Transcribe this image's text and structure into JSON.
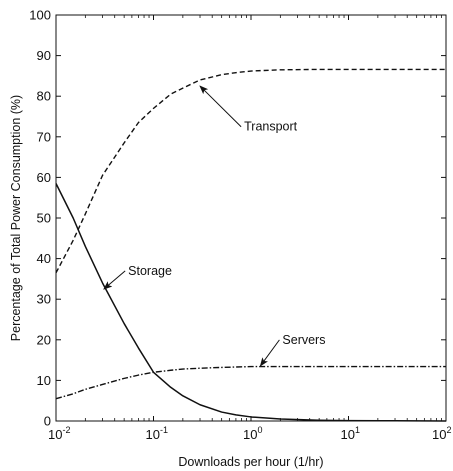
{
  "chart_data": {
    "type": "line",
    "title": "",
    "xlabel": "Downloads per hour (1/hr)",
    "ylabel": "Percentage of Total Power Consumption (%)",
    "xscale": "log",
    "xlim": [
      0.01,
      100
    ],
    "ylim": [
      0,
      100
    ],
    "grid": false,
    "legend": "none",
    "x_ticks": [
      {
        "base": "10",
        "exp": "-2",
        "value": 0.01
      },
      {
        "base": "10",
        "exp": "-1",
        "value": 0.1
      },
      {
        "base": "10",
        "exp": "0",
        "value": 1
      },
      {
        "base": "10",
        "exp": "1",
        "value": 10
      },
      {
        "base": "10",
        "exp": "2",
        "value": 100
      }
    ],
    "y_ticks": [
      "0",
      "10",
      "20",
      "30",
      "40",
      "50",
      "60",
      "70",
      "80",
      "90",
      "100"
    ],
    "series": [
      {
        "name": "Transport",
        "style": "dashed",
        "color": "#111111",
        "x": [
          0.01,
          0.015,
          0.02,
          0.03,
          0.05,
          0.07,
          0.1,
          0.15,
          0.2,
          0.3,
          0.5,
          0.7,
          1,
          2,
          5,
          10,
          30,
          100
        ],
        "y": [
          36.5,
          44.5,
          51,
          60.5,
          68.5,
          73.5,
          77,
          80.5,
          82,
          84,
          85.3,
          85.8,
          86.2,
          86.5,
          86.6,
          86.6,
          86.6,
          86.6
        ],
        "annotation": {
          "text": "Transport",
          "arrow_x": 0.3,
          "arrow_y": 82.5,
          "text_x": 0.85,
          "text_y": 71.5
        }
      },
      {
        "name": "Storage",
        "style": "solid",
        "color": "#111111",
        "x": [
          0.01,
          0.015,
          0.02,
          0.03,
          0.05,
          0.07,
          0.1,
          0.15,
          0.2,
          0.3,
          0.5,
          0.7,
          1,
          2,
          5,
          10,
          30,
          100
        ],
        "y": [
          58.5,
          50,
          43,
          34,
          24,
          18,
          12,
          8.3,
          6.2,
          4,
          2.2,
          1.5,
          1,
          0.5,
          0.2,
          0.1,
          0.05,
          0
        ],
        "annotation": {
          "text": "Storage",
          "arrow_x": 0.031,
          "arrow_y": 32.5,
          "text_x": 0.055,
          "text_y": 36
        }
      },
      {
        "name": "Servers",
        "style": "dashdot",
        "color": "#111111",
        "x": [
          0.01,
          0.015,
          0.02,
          0.03,
          0.05,
          0.07,
          0.1,
          0.15,
          0.2,
          0.3,
          0.5,
          0.7,
          1,
          2,
          5,
          10,
          30,
          100
        ],
        "y": [
          5.5,
          6.7,
          7.8,
          9,
          10.5,
          11.3,
          12,
          12.5,
          12.8,
          13,
          13.2,
          13.3,
          13.4,
          13.4,
          13.4,
          13.4,
          13.4,
          13.4
        ],
        "annotation": {
          "text": "Servers",
          "arrow_x": 1.25,
          "arrow_y": 13.6,
          "text_x": 2.1,
          "text_y": 19
        }
      }
    ]
  }
}
